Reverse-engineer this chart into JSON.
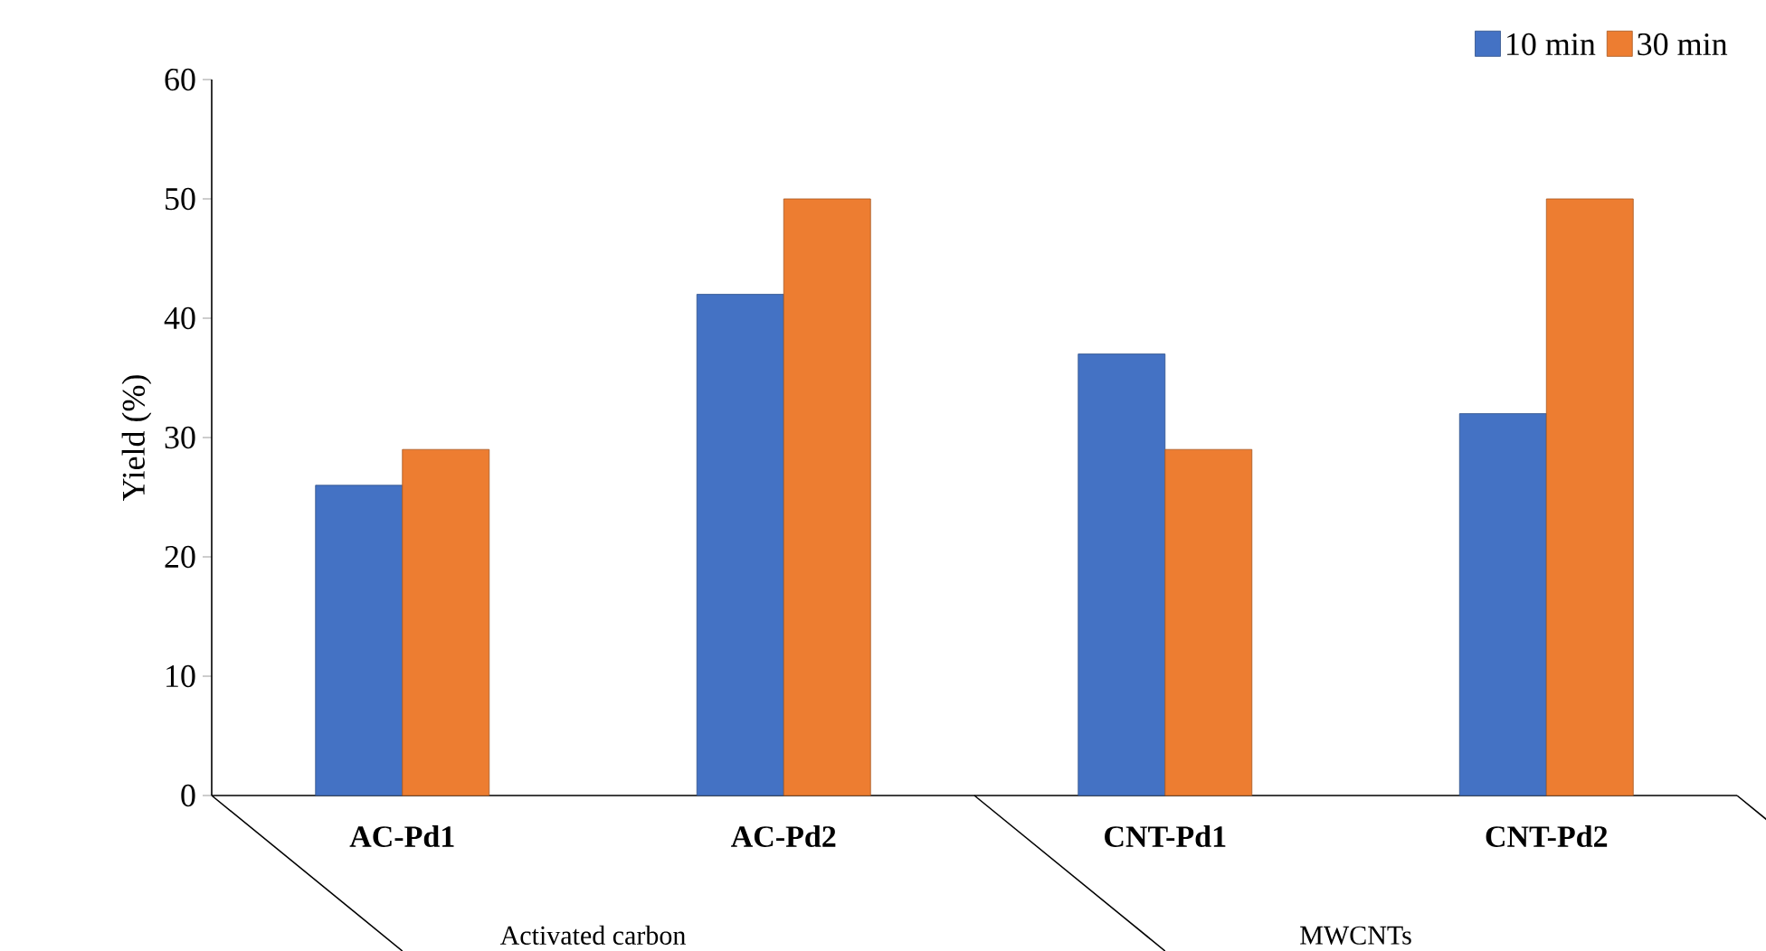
{
  "chart_data": {
    "type": "bar",
    "ylabel": "Yield (%)",
    "categories": [
      "AC-Pd1",
      "AC-Pd2",
      "CNT-Pd1",
      "CNT-Pd2"
    ],
    "series": [
      {
        "name": "10 min",
        "color": "#4472c4",
        "values": [
          26,
          42,
          37,
          32
        ]
      },
      {
        "name": "30 min",
        "color": "#ed7d31",
        "values": [
          29,
          50,
          29,
          50
        ]
      }
    ],
    "ylim": [
      0,
      60
    ],
    "yticks": [
      0,
      10,
      20,
      30,
      40,
      50,
      60
    ],
    "annotations": [
      "Activated carbon",
      "MWCNTs"
    ],
    "grid": false,
    "legend": "top right"
  }
}
